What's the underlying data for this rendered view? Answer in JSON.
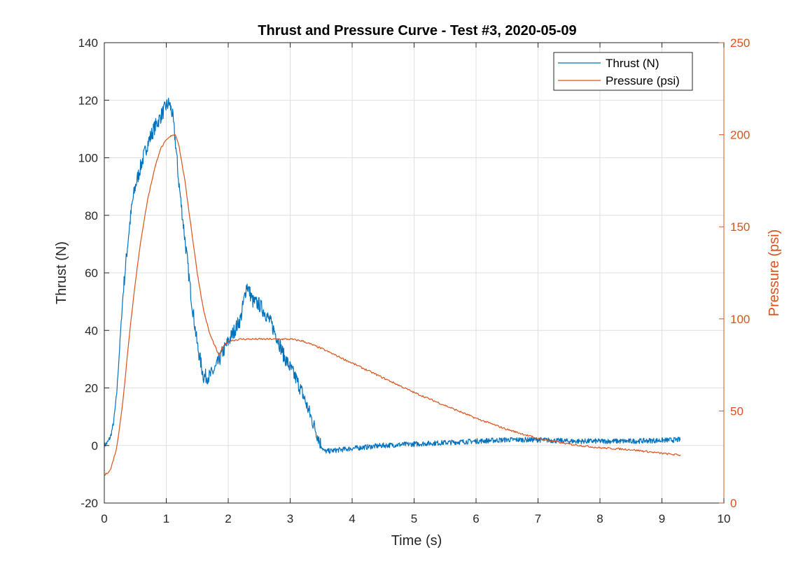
{
  "chart_data": {
    "type": "line",
    "title": "Thrust and Pressure Curve - Test #3, 2020-05-09",
    "xlabel": "Time (s)",
    "ylabel_left": "Thrust (N)",
    "ylabel_right": "Pressure (psi)",
    "xlim": [
      0,
      10
    ],
    "ylim_left": [
      -20,
      140
    ],
    "ylim_right": [
      0,
      250
    ],
    "x_ticks": [
      "0",
      "1",
      "2",
      "3",
      "4",
      "5",
      "6",
      "7",
      "8",
      "9",
      "10"
    ],
    "y_left_ticks": [
      "-20",
      "0",
      "20",
      "40",
      "60",
      "80",
      "100",
      "120",
      "140"
    ],
    "y_right_ticks": [
      "0",
      "50",
      "100",
      "150",
      "200",
      "250"
    ],
    "grid": true,
    "legend_position": "top-right",
    "colors": {
      "thrust": "#0072BD",
      "pressure": "#D95319",
      "axis": "#262626",
      "grid": "#dfdfdf"
    },
    "series": [
      {
        "name": "Thrust (N)",
        "axis": "left",
        "color": "#0072BD",
        "x": [
          0,
          0.05,
          0.1,
          0.15,
          0.2,
          0.25,
          0.3,
          0.35,
          0.4,
          0.45,
          0.5,
          0.6,
          0.7,
          0.8,
          0.9,
          1.0,
          1.05,
          1.1,
          1.15,
          1.2,
          1.3,
          1.4,
          1.5,
          1.6,
          1.7,
          1.8,
          1.9,
          2.0,
          2.1,
          2.2,
          2.3,
          2.4,
          2.5,
          2.6,
          2.7,
          2.8,
          2.9,
          3.0,
          3.1,
          3.2,
          3.3,
          3.4,
          3.5,
          3.55,
          3.6,
          4.0,
          4.5,
          5.0,
          5.5,
          6.0,
          6.5,
          7.0,
          7.5,
          8.0,
          8.5,
          9.0,
          9.3
        ],
        "values": [
          0,
          1,
          3,
          8,
          18,
          35,
          52,
          64,
          75,
          84,
          90,
          98,
          105,
          110,
          114,
          118,
          119,
          115,
          105,
          92,
          72,
          52,
          35,
          24,
          24,
          27,
          32,
          36,
          40,
          44,
          56,
          50,
          49,
          46,
          42,
          37,
          31,
          27,
          23,
          18,
          12,
          6,
          0,
          -2,
          -2,
          -1,
          0,
          0.5,
          1,
          1.5,
          2,
          2,
          1.5,
          1.5,
          1.5,
          1.8,
          2
        ]
      },
      {
        "name": "Pressure (psi)",
        "axis": "right",
        "color": "#D95319",
        "x": [
          0,
          0.1,
          0.2,
          0.3,
          0.4,
          0.5,
          0.6,
          0.7,
          0.8,
          0.9,
          1.0,
          1.1,
          1.15,
          1.2,
          1.3,
          1.4,
          1.5,
          1.6,
          1.7,
          1.8,
          1.85,
          1.9,
          2.0,
          2.2,
          2.5,
          3.0,
          3.2,
          3.5,
          4.0,
          4.5,
          5.0,
          5.5,
          6.0,
          6.5,
          7.0,
          7.5,
          8.0,
          8.5,
          9.0,
          9.3
        ],
        "values": [
          15,
          18,
          30,
          55,
          90,
          120,
          145,
          165,
          180,
          192,
          197,
          200,
          200,
          195,
          175,
          150,
          125,
          105,
          92,
          84,
          80,
          84,
          88,
          89,
          89,
          89,
          88,
          84,
          76,
          68,
          60,
          53,
          46,
          40,
          35,
          32,
          30,
          29,
          27,
          26
        ]
      }
    ]
  }
}
